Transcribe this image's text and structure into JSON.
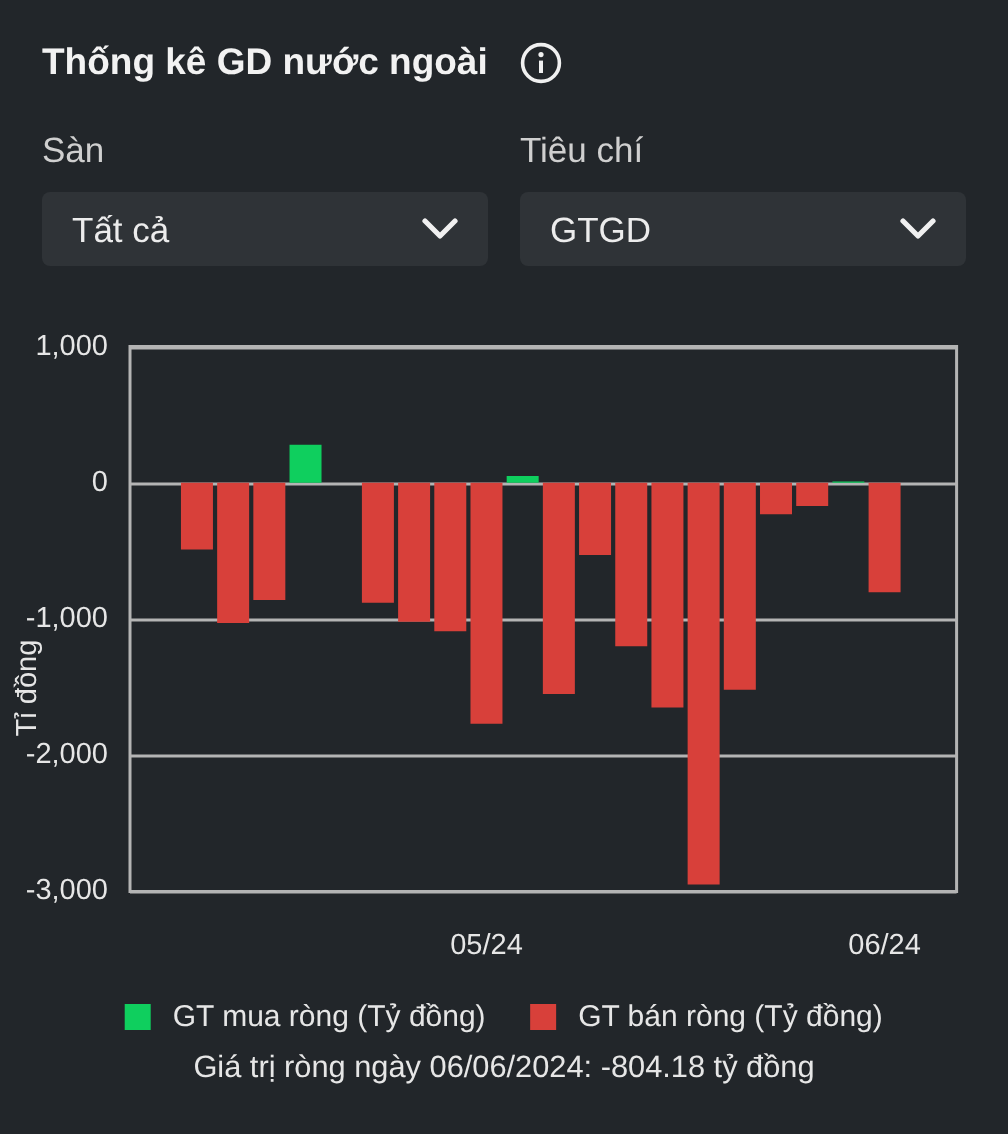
{
  "chart_data": {
    "type": "bar",
    "title": "Thống kê GD nước ngoài",
    "ylabel": "Tỉ đồng",
    "annotations": [
      "Sàn",
      "Tất cả",
      "Tiêu chí",
      "GTGD",
      "Giá trị ròng ngày 06/06/2024: -804.18 tỷ đồng"
    ],
    "categories": [
      null,
      null,
      null,
      null,
      null,
      null,
      null,
      null,
      "05/24",
      null,
      null,
      null,
      null,
      null,
      null,
      null,
      null,
      null,
      null,
      "06/24"
    ],
    "series": [
      {
        "name": "GT mua ròng (Tỷ đồng)",
        "color": "#0fcf5e",
        "values": [
          null,
          null,
          null,
          280,
          null,
          null,
          null,
          null,
          null,
          50,
          null,
          null,
          null,
          null,
          null,
          null,
          null,
          null,
          10,
          null
        ]
      },
      {
        "name": "GT bán ròng (Tỷ đồng)",
        "color": "#d8403a",
        "values": [
          -490,
          -1030,
          -860,
          null,
          null,
          -880,
          -1020,
          -1090,
          -1770,
          null,
          -1550,
          -530,
          -1200,
          -1650,
          -2950,
          -1520,
          -230,
          -170,
          null,
          -804.18
        ]
      }
    ],
    "ylim": [
      -3000,
      1000
    ],
    "yticks": [
      {
        "value": -3000,
        "label": "-3,000"
      },
      {
        "value": -2000,
        "label": "-2,000"
      },
      {
        "value": -1000,
        "label": "-1,000"
      },
      0,
      {
        "value": 1000,
        "label": "1,000"
      }
    ],
    "grid": "y",
    "legend": "bottom"
  }
}
